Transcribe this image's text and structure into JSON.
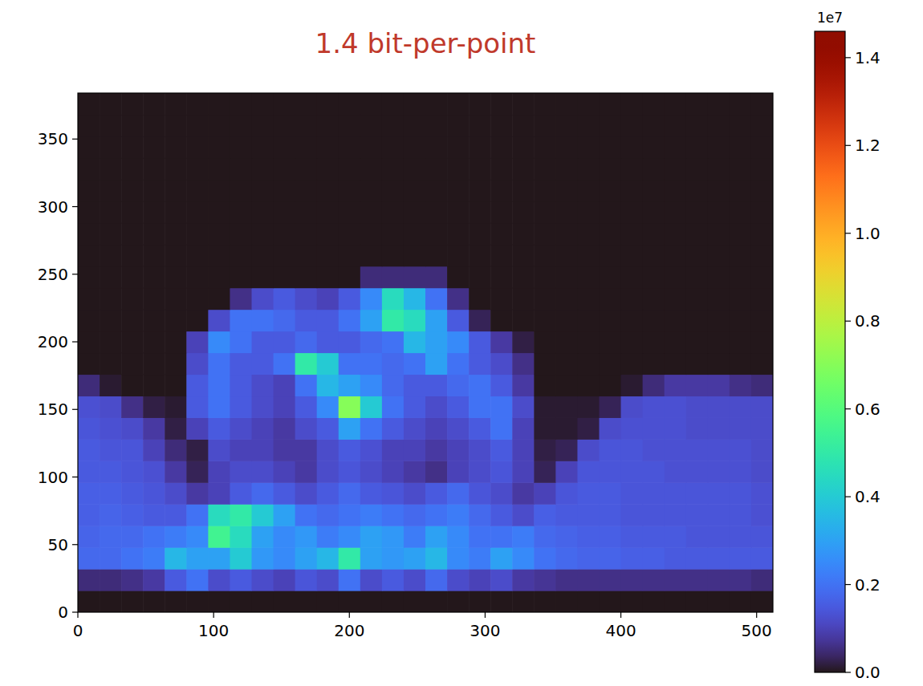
{
  "chart_data": {
    "type": "heatmap",
    "title": "1.4 bit-per-point",
    "xlim": [
      0,
      512
    ],
    "ylim": [
      0,
      384
    ],
    "xticks": [
      0,
      100,
      200,
      300,
      400,
      500
    ],
    "yticks": [
      0,
      50,
      100,
      150,
      200,
      250,
      300,
      350
    ],
    "cells": [
      [
        0,
        0,
        0,
        0,
        0,
        0,
        0,
        0,
        0,
        0,
        0,
        0,
        0,
        0,
        0,
        0,
        0,
        0,
        0,
        0,
        0,
        0,
        0,
        0,
        0,
        0,
        0,
        0,
        0,
        0,
        0,
        0
      ],
      [
        0.05,
        0.05,
        0.06,
        0.08,
        0.15,
        0.2,
        0.12,
        0.15,
        0.12,
        0.1,
        0.14,
        0.12,
        0.2,
        0.12,
        0.15,
        0.12,
        0.18,
        0.12,
        0.1,
        0.12,
        0.08,
        0.07,
        0.06,
        0.06,
        0.06,
        0.06,
        0.06,
        0.06,
        0.06,
        0.06,
        0.06,
        0.05
      ],
      [
        0.18,
        0.18,
        0.2,
        0.22,
        0.35,
        0.3,
        0.3,
        0.4,
        0.28,
        0.25,
        0.3,
        0.35,
        0.5,
        0.3,
        0.28,
        0.3,
        0.35,
        0.25,
        0.22,
        0.3,
        0.25,
        0.2,
        0.18,
        0.17,
        0.17,
        0.16,
        0.16,
        0.15,
        0.15,
        0.15,
        0.15,
        0.15
      ],
      [
        0.17,
        0.18,
        0.18,
        0.2,
        0.22,
        0.25,
        0.55,
        0.45,
        0.3,
        0.25,
        0.28,
        0.22,
        0.25,
        0.3,
        0.28,
        0.22,
        0.3,
        0.25,
        0.2,
        0.2,
        0.22,
        0.18,
        0.17,
        0.16,
        0.16,
        0.15,
        0.15,
        0.15,
        0.14,
        0.14,
        0.14,
        0.14
      ],
      [
        0.16,
        0.17,
        0.16,
        0.15,
        0.15,
        0.2,
        0.45,
        0.5,
        0.4,
        0.3,
        0.2,
        0.18,
        0.2,
        0.22,
        0.2,
        0.18,
        0.2,
        0.22,
        0.18,
        0.15,
        0.12,
        0.16,
        0.15,
        0.15,
        0.15,
        0.14,
        0.14,
        0.14,
        0.14,
        0.14,
        0.14,
        0.13
      ],
      [
        0.16,
        0.16,
        0.15,
        0.14,
        0.12,
        0.08,
        0.1,
        0.15,
        0.18,
        0.15,
        0.12,
        0.15,
        0.18,
        0.15,
        0.14,
        0.12,
        0.15,
        0.18,
        0.14,
        0.12,
        0.08,
        0.1,
        0.14,
        0.15,
        0.15,
        0.14,
        0.14,
        0.14,
        0.14,
        0.14,
        0.14,
        0.13
      ],
      [
        0.15,
        0.15,
        0.14,
        0.13,
        0.08,
        0.03,
        0.1,
        0.12,
        0.12,
        0.1,
        0.08,
        0.12,
        0.14,
        0.12,
        0.1,
        0.08,
        0.06,
        0.1,
        0.12,
        0.14,
        0.1,
        0.03,
        0.1,
        0.14,
        0.14,
        0.14,
        0.14,
        0.13,
        0.13,
        0.13,
        0.13,
        0.12
      ],
      [
        0.15,
        0.14,
        0.14,
        0.1,
        0.05,
        0.02,
        0.12,
        0.1,
        0.1,
        0.08,
        0.08,
        0.12,
        0.15,
        0.13,
        0.1,
        0.1,
        0.08,
        0.1,
        0.12,
        0.15,
        0.1,
        0.02,
        0.03,
        0.12,
        0.14,
        0.14,
        0.13,
        0.13,
        0.13,
        0.13,
        0.13,
        0.12
      ],
      [
        0.14,
        0.13,
        0.12,
        0.08,
        0.02,
        0.1,
        0.15,
        0.12,
        0.1,
        0.08,
        0.12,
        0.15,
        0.3,
        0.2,
        0.15,
        0.12,
        0.1,
        0.12,
        0.15,
        0.2,
        0.1,
        0.01,
        0.01,
        0.02,
        0.12,
        0.13,
        0.13,
        0.13,
        0.12,
        0.12,
        0.12,
        0.12
      ],
      [
        0.13,
        0.12,
        0.06,
        0.02,
        0.01,
        0.15,
        0.2,
        0.15,
        0.12,
        0.1,
        0.15,
        0.25,
        0.7,
        0.4,
        0.2,
        0.15,
        0.12,
        0.15,
        0.2,
        0.2,
        0.12,
        0.01,
        0.01,
        0.01,
        0.03,
        0.12,
        0.13,
        0.13,
        0.12,
        0.12,
        0.12,
        0.12
      ],
      [
        0.05,
        0.01,
        0,
        0,
        0,
        0.15,
        0.2,
        0.15,
        0.12,
        0.1,
        0.2,
        0.35,
        0.3,
        0.25,
        0.18,
        0.15,
        0.15,
        0.18,
        0.2,
        0.15,
        0.08,
        0,
        0,
        0,
        0,
        0.01,
        0.05,
        0.08,
        0.08,
        0.08,
        0.06,
        0.05
      ],
      [
        0,
        0,
        0,
        0,
        0,
        0.12,
        0.2,
        0.15,
        0.15,
        0.2,
        0.5,
        0.4,
        0.2,
        0.2,
        0.18,
        0.2,
        0.3,
        0.2,
        0.15,
        0.12,
        0.06,
        0,
        0,
        0,
        0,
        0,
        0,
        0,
        0,
        0,
        0,
        0
      ],
      [
        0,
        0,
        0,
        0,
        0,
        0.1,
        0.25,
        0.2,
        0.15,
        0.15,
        0.18,
        0.15,
        0.15,
        0.18,
        0.2,
        0.35,
        0.3,
        0.25,
        0.15,
        0.08,
        0.02,
        0,
        0,
        0,
        0,
        0,
        0,
        0,
        0,
        0,
        0,
        0
      ],
      [
        0,
        0,
        0,
        0,
        0,
        0,
        0.12,
        0.2,
        0.2,
        0.18,
        0.15,
        0.15,
        0.2,
        0.3,
        0.5,
        0.45,
        0.3,
        0.15,
        0.03,
        0,
        0,
        0,
        0,
        0,
        0,
        0,
        0,
        0,
        0,
        0,
        0,
        0
      ],
      [
        0,
        0,
        0,
        0,
        0,
        0,
        0,
        0.06,
        0.12,
        0.15,
        0.12,
        0.1,
        0.15,
        0.25,
        0.45,
        0.35,
        0.2,
        0.06,
        0,
        0,
        0,
        0,
        0,
        0,
        0,
        0,
        0,
        0,
        0,
        0,
        0,
        0
      ],
      [
        0,
        0,
        0,
        0,
        0,
        0,
        0,
        0,
        0,
        0,
        0,
        0,
        0,
        0.05,
        0.05,
        0.05,
        0.05,
        0,
        0,
        0,
        0,
        0,
        0,
        0,
        0,
        0,
        0,
        0,
        0,
        0,
        0,
        0
      ],
      [
        0,
        0,
        0,
        0,
        0,
        0,
        0,
        0,
        0,
        0,
        0,
        0,
        0,
        0,
        0,
        0,
        0,
        0,
        0,
        0,
        0,
        0,
        0,
        0,
        0,
        0,
        0,
        0,
        0,
        0,
        0,
        0
      ],
      [
        0,
        0,
        0,
        0,
        0,
        0,
        0,
        0,
        0,
        0,
        0,
        0,
        0,
        0,
        0,
        0,
        0,
        0,
        0,
        0,
        0,
        0,
        0,
        0,
        0,
        0,
        0,
        0,
        0,
        0,
        0,
        0
      ],
      [
        0,
        0,
        0,
        0,
        0,
        0,
        0,
        0,
        0,
        0,
        0,
        0,
        0,
        0,
        0,
        0,
        0,
        0,
        0,
        0,
        0,
        0,
        0,
        0,
        0,
        0,
        0,
        0,
        0,
        0,
        0,
        0
      ],
      [
        0,
        0,
        0,
        0,
        0,
        0,
        0,
        0,
        0,
        0,
        0,
        0,
        0,
        0,
        0,
        0,
        0,
        0,
        0,
        0,
        0,
        0,
        0,
        0,
        0,
        0,
        0,
        0,
        0,
        0,
        0,
        0
      ],
      [
        0,
        0,
        0,
        0,
        0,
        0,
        0,
        0,
        0,
        0,
        0,
        0,
        0,
        0,
        0,
        0,
        0,
        0,
        0,
        0,
        0,
        0,
        0,
        0,
        0,
        0,
        0,
        0,
        0,
        0,
        0,
        0
      ],
      [
        0,
        0,
        0,
        0,
        0,
        0,
        0,
        0,
        0,
        0,
        0,
        0,
        0,
        0,
        0,
        0,
        0,
        0,
        0,
        0,
        0,
        0,
        0,
        0,
        0,
        0,
        0,
        0,
        0,
        0,
        0,
        0
      ],
      [
        0,
        0,
        0,
        0,
        0,
        0,
        0,
        0,
        0,
        0,
        0,
        0,
        0,
        0,
        0,
        0,
        0,
        0,
        0,
        0,
        0,
        0,
        0,
        0,
        0,
        0,
        0,
        0,
        0,
        0,
        0,
        0
      ],
      [
        0,
        0,
        0,
        0,
        0,
        0,
        0,
        0,
        0,
        0,
        0,
        0,
        0,
        0,
        0,
        0,
        0,
        0,
        0,
        0,
        0,
        0,
        0,
        0,
        0,
        0,
        0,
        0,
        0,
        0,
        0,
        0
      ]
    ],
    "colorbar_range": [
      0,
      1.46
    ],
    "colorbar_ticks": [
      {
        "value": 0,
        "label": "0.0"
      },
      0.2,
      0.4,
      0.6,
      0.8,
      {
        "value": 1,
        "label": "1.0"
      },
      1.2,
      1.4
    ],
    "colorbar_label": "1e7"
  }
}
